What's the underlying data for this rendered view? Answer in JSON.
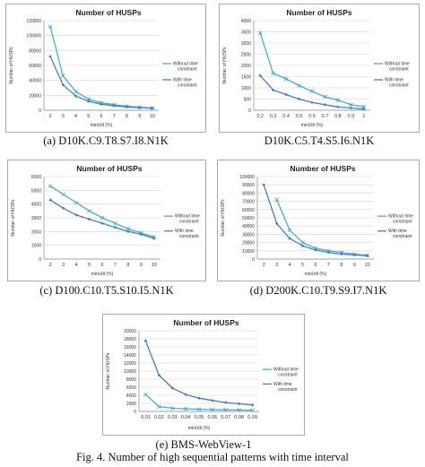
{
  "colors": {
    "series_without": "#4bacc6",
    "series_with": "#4a7dbf",
    "grid": "#d4d4d4",
    "axis": "#888888",
    "title": "#1f1f1f"
  },
  "chart_data": [
    {
      "id": "a",
      "type": "line",
      "title": "Number of HUSPs",
      "xlabel": "minUtil (%)",
      "ylabel": "Number of HUSPs",
      "categories": [
        "2",
        "3",
        "4",
        "5",
        "6",
        "7",
        "8",
        "9",
        "10"
      ],
      "ylim": [
        0,
        120000
      ],
      "yticks": [
        0,
        20000,
        40000,
        60000,
        80000,
        100000,
        120000
      ],
      "grid": true,
      "legend_position": "right",
      "series": [
        {
          "name": "Without time constraint",
          "name_lines": [
            "Without time",
            "constraint"
          ],
          "values": [
            112000,
            46000,
            25000,
            15000,
            10000,
            7500,
            5500,
            4000,
            3000
          ]
        },
        {
          "name": "With time constraint",
          "name_lines": [
            "With time",
            "constraint"
          ],
          "values": [
            72000,
            34000,
            19000,
            12000,
            8000,
            6000,
            4500,
            3500,
            2800
          ]
        }
      ],
      "caption": "(a) D10K.C9.T8.S7.I8.N1K"
    },
    {
      "id": "b",
      "type": "line",
      "title": "Number of HUSPs",
      "xlabel": "minUtil (%)",
      "ylabel": "Number of HUSPs",
      "categories": [
        "0.2",
        "0.3",
        "0.4",
        "0.5",
        "0.6",
        "0.7",
        "0.8",
        "0.9",
        "1"
      ],
      "ylim": [
        0,
        4000
      ],
      "yticks": [
        0,
        500,
        1000,
        1500,
        2000,
        2500,
        3000,
        3500,
        4000
      ],
      "grid": true,
      "legend_position": "right",
      "series": [
        {
          "name": "Without time constraint",
          "name_lines": [
            "Without time",
            "constraint"
          ],
          "values": [
            3450,
            1650,
            1400,
            1100,
            850,
            600,
            450,
            250,
            150
          ]
        },
        {
          "name": "With time constraint",
          "name_lines": [
            "With time",
            "constraint"
          ],
          "values": [
            1550,
            900,
            700,
            500,
            350,
            250,
            150,
            100,
            50
          ]
        }
      ],
      "caption": "D10K.C5.T4.S5.I6.N1K"
    },
    {
      "id": "c",
      "type": "line",
      "title": "Number of HUSPs",
      "xlabel": "minUtil (%)",
      "ylabel": "Number of HUSPs",
      "categories": [
        "2",
        "3",
        "4",
        "5",
        "6",
        "7",
        "8",
        "9",
        "10"
      ],
      "ylim": [
        0,
        6000
      ],
      "yticks": [
        0,
        1000,
        2000,
        3000,
        4000,
        5000,
        6000
      ],
      "grid": true,
      "legend_position": "right",
      "series": [
        {
          "name": "Without time constraint",
          "name_lines": [
            "Without time",
            "constraint"
          ],
          "values": [
            5300,
            4700,
            4100,
            3500,
            3000,
            2600,
            2200,
            1900,
            1600
          ]
        },
        {
          "name": "With time constraint",
          "name_lines": [
            "With time",
            "constraint"
          ],
          "values": [
            4300,
            3700,
            3200,
            2900,
            2600,
            2300,
            2000,
            1800,
            1500
          ]
        }
      ],
      "caption": "(c) D100.C10.T5.S10.I5.N1K"
    },
    {
      "id": "d",
      "type": "line",
      "title": "Number of HUSPs",
      "xlabel": "minUtil (%)",
      "ylabel": "Number of HUSPs",
      "categories": [
        "2",
        "3",
        "4",
        "5",
        "6",
        "7",
        "8",
        "9",
        "10"
      ],
      "ylim": [
        0,
        100000
      ],
      "yticks": [
        0,
        10000,
        20000,
        30000,
        40000,
        50000,
        60000,
        70000,
        80000,
        90000,
        100000
      ],
      "grid": true,
      "legend_position": "right",
      "series": [
        {
          "name": "Without time constraint",
          "name_lines": [
            "Without time",
            "constraint"
          ],
          "values": [
            null,
            72000,
            35000,
            20000,
            13000,
            10000,
            8000,
            6000,
            4500
          ]
        },
        {
          "name": "With time constraint",
          "name_lines": [
            "With time",
            "constraint"
          ],
          "values": [
            90000,
            43000,
            25000,
            16000,
            11000,
            8000,
            6000,
            5000,
            4000
          ]
        }
      ],
      "caption": "(d) D200K.C10.T9.S9.I7.N1K"
    },
    {
      "id": "e",
      "type": "line",
      "title": "Number of HUSPs",
      "xlabel": "minUtil (%)",
      "ylabel": "Number of HUSPs",
      "categories": [
        "0.01",
        "0.02",
        "0.03",
        "0.04",
        "0.05",
        "0.06",
        "0.07",
        "0.08",
        "0.09"
      ],
      "ylim": [
        0,
        20000
      ],
      "yticks": [
        0,
        2000,
        4000,
        6000,
        8000,
        10000,
        12000,
        14000,
        16000,
        18000,
        20000
      ],
      "grid": true,
      "legend_position": "right",
      "series": [
        {
          "name": "Without time constraint",
          "name_lines": [
            "Without time",
            "constraint"
          ],
          "values": [
            4200,
            1200,
            800,
            650,
            550,
            450,
            400,
            350,
            300
          ]
        },
        {
          "name": "With time constraint",
          "name_lines": [
            "With time",
            "constraint"
          ],
          "values": [
            17500,
            9000,
            5800,
            4200,
            3300,
            2700,
            2200,
            1900,
            1600
          ]
        }
      ],
      "caption": "(e) BMS-WebView-1"
    }
  ],
  "figure_caption": "Fig. 4. Number of high sequential patterns with time interval"
}
